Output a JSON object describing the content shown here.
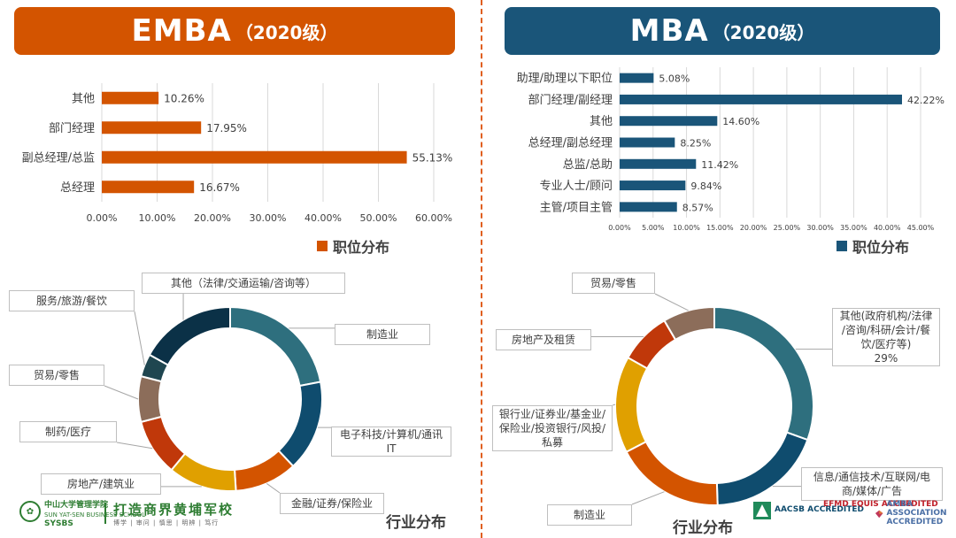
{
  "emba": {
    "title_main": "EMBA",
    "title_sub": "（2020级）",
    "legend_label": "职位分布",
    "industry_title": "行业分布"
  },
  "mba": {
    "title_main": "MBA",
    "title_sub": "（2020级）",
    "legend_label": "职位分布",
    "industry_title": "行业分布"
  },
  "colors": {
    "emba_bar": "#d35400",
    "mba_bar": "#1a5579"
  },
  "chart_data": [
    {
      "type": "bar",
      "orientation": "horizontal",
      "categories": [
        "其他",
        "部门经理",
        "副总经理/总监",
        "总经理"
      ],
      "values": [
        10.26,
        17.95,
        55.13,
        16.67
      ],
      "data_labels": [
        "10.26%",
        "17.95%",
        "55.13%",
        "16.67%"
      ],
      "xlim": [
        0,
        60
      ],
      "ticks": [
        "0.00%",
        "10.00%",
        "20.00%",
        "30.00%",
        "40.00%",
        "50.00%",
        "60.00%"
      ],
      "grid": true,
      "legend": "bottom-right",
      "series": [
        {
          "name": "职位分布"
        }
      ]
    },
    {
      "type": "bar",
      "orientation": "horizontal",
      "categories": [
        "助理/助理以下职位",
        "部门经理/副经理",
        "其他",
        "总经理/副总经理",
        "总监/总助",
        "专业人士/顾问",
        "主管/项目主管"
      ],
      "values": [
        5.08,
        42.22,
        14.6,
        8.25,
        11.42,
        9.84,
        8.57
      ],
      "data_labels": [
        "5.08%",
        "42.22%",
        "14.60%",
        "8.25%",
        "11.42%",
        "9.84%",
        "8.57%"
      ],
      "xlim": [
        0,
        45
      ],
      "ticks": [
        "0.00%",
        "5.00%",
        "10.00%",
        "15.00%",
        "20.00%",
        "25.00%",
        "30.00%",
        "35.00%",
        "40.00%",
        "45.00%"
      ],
      "grid": true,
      "legend": "bottom-right",
      "series": [
        {
          "name": "职位分布"
        }
      ]
    },
    {
      "type": "pie",
      "variant": "donut",
      "title": "行业分布",
      "labels": [
        "制造业",
        "电子科技/计算机/通讯IT",
        "金融/证券/保险业",
        "房地产/建筑业",
        "制药/医疗",
        "贸易/零售",
        "服务/旅游/餐饮",
        "其他（法律/交通运输/咨询等）"
      ],
      "display_labels": [
        "制造业",
        "电子科技/计算机/通讯\nIT",
        "金融/证券/保险业",
        "房地产/建筑业",
        "制药/医疗",
        "贸易/零售",
        "服务/旅游/餐饮",
        "其他（法律/交通运输/咨询等）"
      ],
      "values": [
        22,
        16,
        11,
        12,
        10,
        8,
        4,
        17
      ],
      "colors": [
        "#2e6f7e",
        "#0f4c6e",
        "#d35400",
        "#e0a000",
        "#c0380a",
        "#8c6d5a",
        "#1f4650",
        "#0b3147"
      ]
    },
    {
      "type": "pie",
      "variant": "donut",
      "title": "行业分布",
      "labels": [
        "其他(政府机构/法律/咨询/科研/会计/餐饮/医疗等)",
        "信息/通信技术/互联网/电商/媒体/广告",
        "制造业",
        "银行业/证券业/基金业/保险业/投资银行/风投/私募",
        "房地产及租赁",
        "贸易/零售"
      ],
      "display_labels": [
        "其他(政府机构/法律\n/咨询/科研/会计/餐\n饮/医疗等)\n29%",
        "信息/通信技术/互联网/电\n商/媒体/广告",
        "制造业",
        "银行业/证券业/基金业/\n保险业/投资银行/风投/\n私募",
        "房地产及租赁",
        "贸易/零售"
      ],
      "values": [
        29,
        18,
        17,
        15,
        8,
        8
      ],
      "data_labels": [
        "29%",
        "",
        "",
        "",
        "",
        ""
      ],
      "colors": [
        "#2e6f7e",
        "#0f4c6e",
        "#d35400",
        "#e0a000",
        "#c0380a",
        "#8c6d5a"
      ]
    }
  ],
  "footer": {
    "school_cn": "中山大学管理学院",
    "school_en": "SUN YAT-SEN BUSINESS SCHOOL",
    "school_abbr": "SYSBS",
    "slogan": "打造商界黄埔军校",
    "slogan_sub": "博学 | 审问 | 慎思 | 明辨 | 笃行",
    "accreditations": [
      "AACSB ACCREDITED",
      "EFMD EQUIS ACCREDITED",
      "AMBA ASSOCIATION ACCREDITED"
    ]
  }
}
